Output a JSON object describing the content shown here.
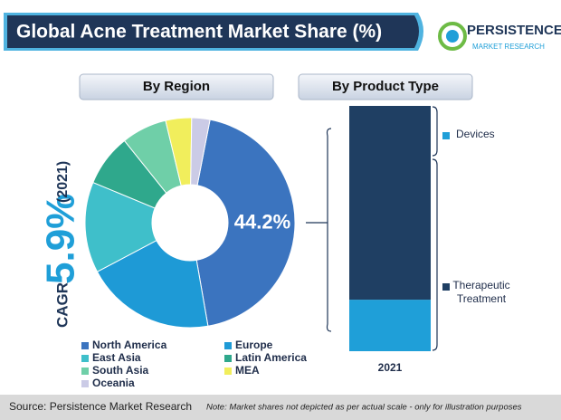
{
  "header": {
    "title": "Global Acne Treatment Market Share (%)",
    "logo_name": "PERSISTENCE",
    "logo_sub": "MARKET RESEARCH"
  },
  "cagr": {
    "label": "CAGR",
    "value": "5.9%",
    "year": "(2021)"
  },
  "chart_data": [
    {
      "type": "pie",
      "title": "By Region",
      "categories": [
        "North America",
        "Europe",
        "East Asia",
        "Latin America",
        "South Asia",
        "MEA",
        "Oceania"
      ],
      "values": [
        44.2,
        20,
        14,
        8,
        7,
        4,
        2.8
      ],
      "value_labels": [
        "44.2%",
        null,
        null,
        null,
        null,
        null,
        null
      ],
      "colors": [
        "#3b74bf",
        "#1e9ad6",
        "#3fbfca",
        "#2fa88c",
        "#6fcfa8",
        "#f1ee5c",
        "#cbcbe6"
      ]
    },
    {
      "type": "bar",
      "stacked": true,
      "title": "By Product Type",
      "categories": [
        "2021"
      ],
      "series": [
        {
          "name": "Devices",
          "color": "#1f9fd8",
          "values": [
            21
          ]
        },
        {
          "name": "Therapeutic Treatment",
          "color": "#1f3f63",
          "values": [
            79
          ]
        }
      ]
    }
  ],
  "footer": {
    "source": "Source: Persistence Market Research",
    "note": "Note: Market shares not depicted as per actual scale - only for illustration purposes"
  }
}
